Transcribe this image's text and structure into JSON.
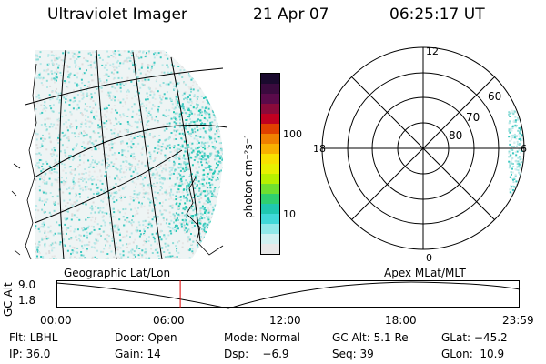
{
  "header": {
    "instrument": "Ultraviolet Imager",
    "date": "21 Apr 07",
    "time": "06:25:17 UT"
  },
  "colorbar": {
    "unit_label": "photon cm⁻²s⁻¹",
    "ticks": [
      "100",
      "10"
    ],
    "colors": [
      "#1a0a2e",
      "#3a0a3e",
      "#5a0a4a",
      "#8a0a3a",
      "#c00020",
      "#e04000",
      "#f08000",
      "#f8b000",
      "#f8e000",
      "#e8f000",
      "#b8f000",
      "#70e030",
      "#30d070",
      "#20c8b0",
      "#40d8d8",
      "#90e8e8",
      "#d0f0f0",
      "#e8e8e8"
    ]
  },
  "geo_panel": {
    "label": "Geographic Lat/Lon",
    "aurora_color": "#3cc8c0",
    "speckle_color": "#b8e8e8"
  },
  "polar_panel": {
    "label": "Apex MLat/MLT",
    "mlt_labels": {
      "top": "12",
      "left": "18",
      "right": "6",
      "bottom": "0"
    },
    "mlat_labels": [
      "60",
      "70",
      "80"
    ]
  },
  "timeline": {
    "ylabel": "GC Alt",
    "y_ticks": [
      "9.0",
      "1.8"
    ],
    "x_ticks": [
      "00:00",
      "06:00",
      "12:00",
      "18:00",
      "23:59"
    ],
    "marker_time": "06:25",
    "marker_color": "#e00000"
  },
  "info": {
    "flt": "Flt: LBHL",
    "door": "Door: Open",
    "mode": "Mode: Normal",
    "gc_alt": "GC Alt: 5.1 Re",
    "glat": "GLat: −45.2",
    "ip": "IP: 36.0",
    "gain": "Gain: 14",
    "dsp": "Dsp:    −6.9",
    "seq": "Seq: 39",
    "glon": "GLon:  10.9"
  }
}
